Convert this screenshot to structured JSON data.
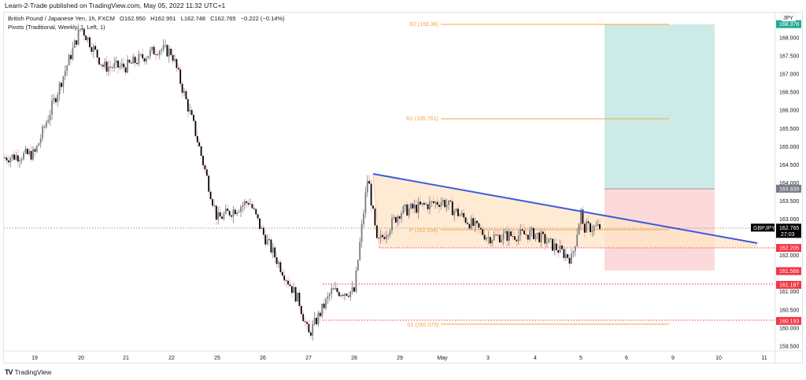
{
  "header": {
    "published": "Learn-2-Trade published on TradingView.com, May 05, 2022 11:32 UTC+1"
  },
  "legend": {
    "symbol_line": "British Pound / Japanese Yen, 1h, FXCM",
    "open": "O162.950",
    "high": "H162.951",
    "low": "L162.748",
    "close": "C162.765",
    "change": "−0.222 (−0.14%)",
    "indicator_line": "Pivots (Traditional, Weekly, 1, Left, 1)"
  },
  "price_axis": {
    "currency": "JPY",
    "ticks": [
      "168.000",
      "167.500",
      "167.000",
      "166.500",
      "166.000",
      "165.500",
      "165.000",
      "164.500",
      "164.000",
      "163.500",
      "163.000",
      "162.000",
      "161.000",
      "160.500",
      "160.000",
      "159.500"
    ],
    "tags": [
      {
        "value": "168.376",
        "color": "#22ab94"
      },
      {
        "value": "163.839",
        "color": "#787b86"
      },
      {
        "value": "162.765",
        "color": "#000000",
        "sub": "27:03",
        "symbol": "GBPJPY"
      },
      {
        "value": "162.205",
        "color": "#f23645"
      },
      {
        "value": "161.566",
        "color": "#f23645"
      },
      {
        "value": "161.187",
        "color": "#f23645"
      },
      {
        "value": "160.193",
        "color": "#f23645"
      }
    ]
  },
  "time_axis": {
    "labels": [
      "19",
      "20",
      "21",
      "22",
      "25",
      "26",
      "27",
      "28",
      "29",
      "May",
      "3",
      "4",
      "5",
      "6",
      "9",
      "10",
      "11"
    ]
  },
  "pivots": {
    "R2": "R2 (168.38)",
    "R1": "R1 (165.761)",
    "P": "P (162.994)",
    "S1": "S1 (160.075)"
  },
  "footer": {
    "logo": "TV",
    "brand": "TradingView"
  },
  "colors": {
    "up": "#787b86",
    "down": "#000000",
    "wick_down": "#f7a7ae",
    "trendline": "#3d5bd9",
    "triangle_fill": "#ffe9cc",
    "pivot": "#f7a440",
    "target_zone": "#cdebe6",
    "stop_zone": "#fcdadb",
    "support_dotted": "#f23645"
  },
  "chart_data": {
    "type": "candlestick",
    "title": "British Pound / Japanese Yen, 1h, FXCM",
    "symbol": "GBPJPY",
    "timeframe": "1h",
    "ohlc_last": {
      "open": 162.95,
      "high": 162.951,
      "low": 162.748,
      "close": 162.765,
      "change": -0.222,
      "change_pct": -0.14
    },
    "x_labels": [
      "19",
      "20",
      "21",
      "22",
      "25",
      "26",
      "27",
      "28",
      "29",
      "May",
      "3",
      "4",
      "5",
      "6",
      "9",
      "10",
      "11"
    ],
    "ylabel": "JPY",
    "ylim": [
      159.3,
      168.7
    ],
    "approx_close_path": [
      {
        "date": "19",
        "close": 164.8
      },
      {
        "date": "20",
        "close": 168.3
      },
      {
        "date": "20.5",
        "close": 167.2
      },
      {
        "date": "21",
        "close": 167.2
      },
      {
        "date": "21.7",
        "close": 167.7
      },
      {
        "date": "22",
        "close": 167.6
      },
      {
        "date": "22.5",
        "close": 165.5
      },
      {
        "date": "25",
        "close": 163.0
      },
      {
        "date": "25.7",
        "close": 163.5
      },
      {
        "date": "26",
        "close": 162.6
      },
      {
        "date": "26.8",
        "close": 160.7
      },
      {
        "date": "27",
        "close": 159.8
      },
      {
        "date": "27.5",
        "close": 161.0
      },
      {
        "date": "28",
        "close": 161.0
      },
      {
        "date": "28.3",
        "close": 164.2
      },
      {
        "date": "28.5",
        "close": 162.3
      },
      {
        "date": "29",
        "close": 163.2
      },
      {
        "date": "May",
        "close": 163.5
      },
      {
        "date": "3",
        "close": 162.5
      },
      {
        "date": "4",
        "close": 162.6
      },
      {
        "date": "4.8",
        "close": 161.9
      },
      {
        "date": "5",
        "close": 163.2
      },
      {
        "date": "5.3",
        "close": 162.2
      },
      {
        "date": "5.5",
        "close": 162.765
      }
    ],
    "pivot_levels": {
      "R2": 168.38,
      "R1": 165.761,
      "P": 162.994,
      "S1": 160.075
    },
    "horizontal_levels": [
      161.187,
      160.193,
      162.205
    ],
    "position_tool": {
      "entry": 163.839,
      "target": 168.376,
      "stop": 161.566
    },
    "descending_triangle": {
      "top_start": 164.25,
      "top_end": 162.2,
      "base": 162.205
    },
    "last_price": 162.765,
    "countdown": "27:03"
  }
}
